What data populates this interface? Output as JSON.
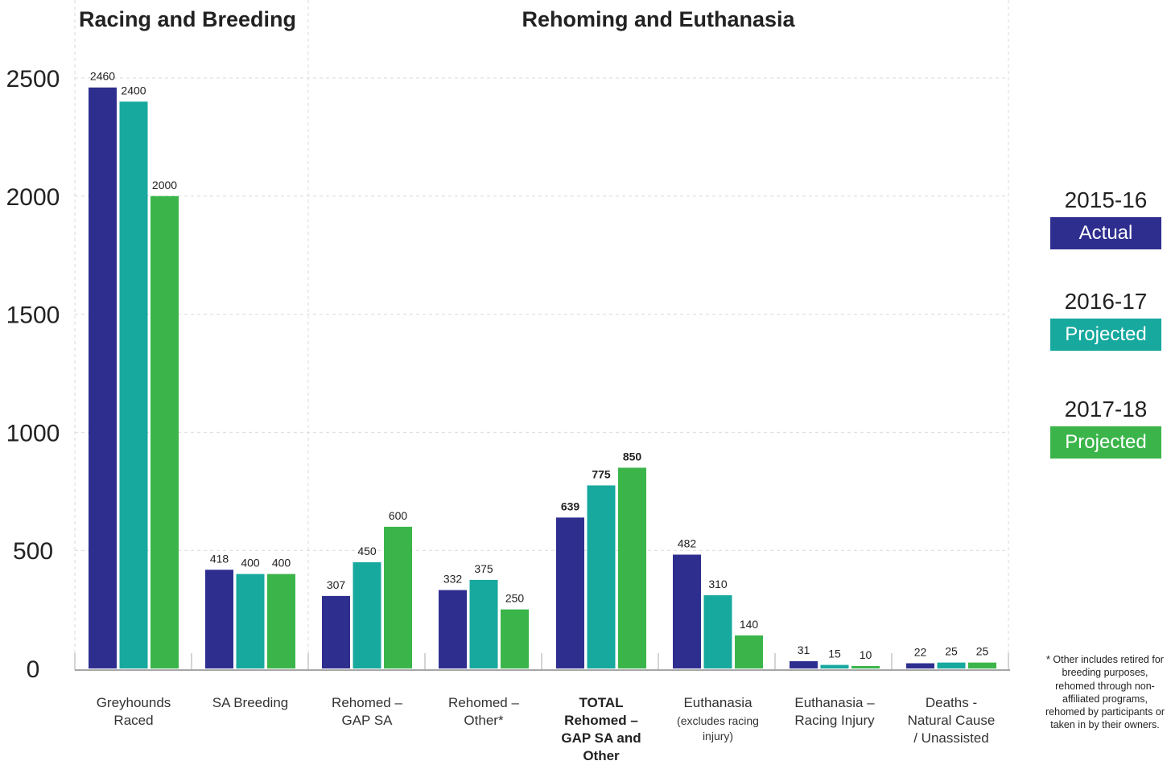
{
  "chart_data": {
    "type": "bar",
    "section_titles": [
      "Racing and Breeding",
      "Rehoming and Euthanasia"
    ],
    "categories": [
      [
        "Greyhounds",
        "Raced"
      ],
      [
        "SA Breeding"
      ],
      [
        "Rehomed –",
        "GAP SA"
      ],
      [
        "Rehomed –",
        "Other*"
      ],
      [
        "TOTAL",
        "Rehomed –",
        "GAP SA and",
        "Other"
      ],
      [
        "Euthanasia",
        "(excludes racing",
        "injury)"
      ],
      [
        "Euthanasia –",
        "Racing Injury"
      ],
      [
        "Deaths -",
        "Natural Cause",
        "/ Unassisted"
      ]
    ],
    "series": [
      {
        "name": "2015-16 Actual",
        "year": "2015-16",
        "tag": "Actual",
        "color": "#2e2e8f",
        "values": [
          2460,
          418,
          307,
          332,
          639,
          482,
          31,
          22
        ]
      },
      {
        "name": "2016-17 Projected",
        "year": "2016-17",
        "tag": "Projected",
        "color": "#17a89e",
        "values": [
          2400,
          400,
          450,
          375,
          775,
          310,
          15,
          25
        ]
      },
      {
        "name": "2017-18 Projected",
        "year": "2017-18",
        "tag": "Projected",
        "color": "#3bb54a",
        "values": [
          2000,
          400,
          600,
          250,
          850,
          140,
          10,
          25
        ]
      }
    ],
    "ylim": [
      0,
      2500
    ],
    "yticks": [
      0,
      500,
      1000,
      1500,
      2000,
      2500
    ],
    "grid": true,
    "legend_placement": "right",
    "footnote": "* Other includes retired for breeding purposes, rehomed through non-affiliated programs, rehomed by participants or taken in by their owners."
  }
}
